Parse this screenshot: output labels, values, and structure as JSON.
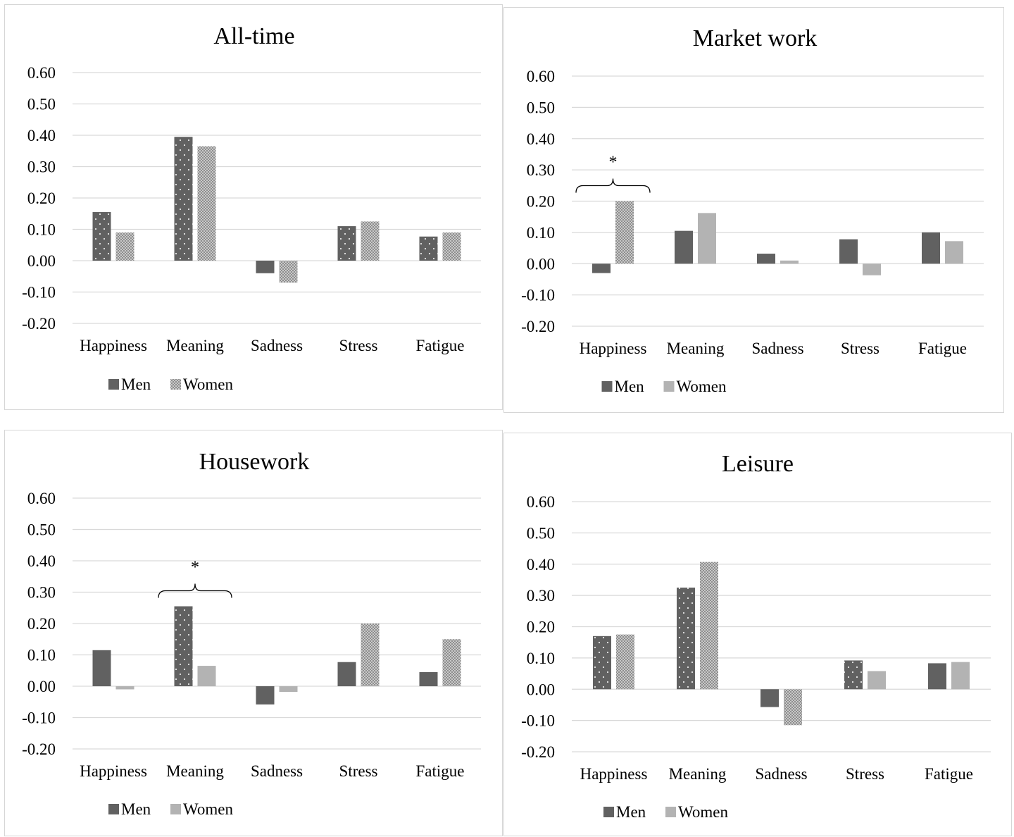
{
  "chart_data": [
    {
      "type": "bar",
      "title": "All-time",
      "categories": [
        "Happiness",
        "Meaning",
        "Sadness",
        "Stress",
        "Fatigue"
      ],
      "ylim": [
        -0.2,
        0.6
      ],
      "yticks": [
        "0.60",
        "0.50",
        "0.40",
        "0.30",
        "0.20",
        "0.10",
        "0.00",
        "-0.10",
        "-0.20"
      ],
      "grid": true,
      "legend_position": "bottom",
      "series": [
        {
          "name": "Men",
          "values": [
            0.155,
            0.395,
            -0.04,
            0.11,
            0.077
          ],
          "patterns": [
            "dots",
            "dots",
            "solid",
            "dots",
            "dots"
          ]
        },
        {
          "name": "Women",
          "values": [
            0.09,
            0.365,
            -0.07,
            0.125,
            0.09
          ],
          "patterns": [
            "checker",
            "checker",
            "checker",
            "checker",
            "checker"
          ]
        }
      ],
      "legend_patterns": [
        "solid",
        "checker"
      ],
      "annotations": []
    },
    {
      "type": "bar",
      "title": "Market work",
      "categories": [
        "Happiness",
        "Meaning",
        "Sadness",
        "Stress",
        "Fatigue"
      ],
      "ylim": [
        -0.2,
        0.6
      ],
      "yticks": [
        "0.60",
        "0.50",
        "0.40",
        "0.30",
        "0.20",
        "0.10",
        "0.00",
        "-0.10",
        "-0.20"
      ],
      "grid": true,
      "legend_position": "bottom",
      "series": [
        {
          "name": "Men",
          "values": [
            -0.03,
            0.105,
            0.032,
            0.078,
            0.1
          ],
          "patterns": [
            "solid",
            "solid",
            "solid",
            "solid",
            "solid"
          ]
        },
        {
          "name": "Women",
          "values": [
            0.2,
            0.162,
            0.01,
            -0.037,
            0.072
          ],
          "patterns": [
            "checker",
            "lightsolid",
            "lightsolid",
            "lightsolid",
            "lightsolid"
          ]
        }
      ],
      "legend_patterns": [
        "solid",
        "lightsolid"
      ],
      "annotations": [
        {
          "category_index": 0,
          "text": "*"
        }
      ]
    },
    {
      "type": "bar",
      "title": "Housework",
      "categories": [
        "Happiness",
        "Meaning",
        "Sadness",
        "Stress",
        "Fatigue"
      ],
      "ylim": [
        -0.2,
        0.6
      ],
      "yticks": [
        "0.60",
        "0.50",
        "0.40",
        "0.30",
        "0.20",
        "0.10",
        "0.00",
        "-0.10",
        "-0.20"
      ],
      "grid": true,
      "legend_position": "bottom",
      "series": [
        {
          "name": "Men",
          "values": [
            0.115,
            0.255,
            -0.058,
            0.077,
            0.045
          ],
          "patterns": [
            "solid",
            "dots",
            "solid",
            "solid",
            "solid"
          ]
        },
        {
          "name": "Women",
          "values": [
            -0.01,
            0.065,
            -0.018,
            0.2,
            0.15
          ],
          "patterns": [
            "lightsolid",
            "lightsolid",
            "lightsolid",
            "checker",
            "checker"
          ]
        }
      ],
      "legend_patterns": [
        "solid",
        "lightsolid"
      ],
      "annotations": [
        {
          "category_index": 1,
          "text": "*"
        }
      ]
    },
    {
      "type": "bar",
      "title": "Leisure",
      "categories": [
        "Happiness",
        "Meaning",
        "Sadness",
        "Stress",
        "Fatigue"
      ],
      "ylim": [
        -0.2,
        0.6
      ],
      "yticks": [
        "0.60",
        "0.50",
        "0.40",
        "0.30",
        "0.20",
        "0.10",
        "0.00",
        "-0.10",
        "-0.20"
      ],
      "grid": true,
      "legend_position": "bottom",
      "series": [
        {
          "name": "Men",
          "values": [
            0.17,
            0.325,
            -0.057,
            0.092,
            0.083
          ],
          "patterns": [
            "dots",
            "dots",
            "solid",
            "dots",
            "solid"
          ]
        },
        {
          "name": "Women",
          "values": [
            0.175,
            0.407,
            -0.115,
            0.058,
            0.087
          ],
          "patterns": [
            "checker",
            "checker",
            "checker",
            "lightsolid",
            "lightsolid"
          ]
        }
      ],
      "legend_patterns": [
        "solid",
        "lightsolid"
      ],
      "annotations": []
    }
  ],
  "colors": {
    "men": "#616161",
    "women_light": "#b3b3b3",
    "women_checker": "#a6a6a6",
    "grid": "#d9d9d9"
  }
}
